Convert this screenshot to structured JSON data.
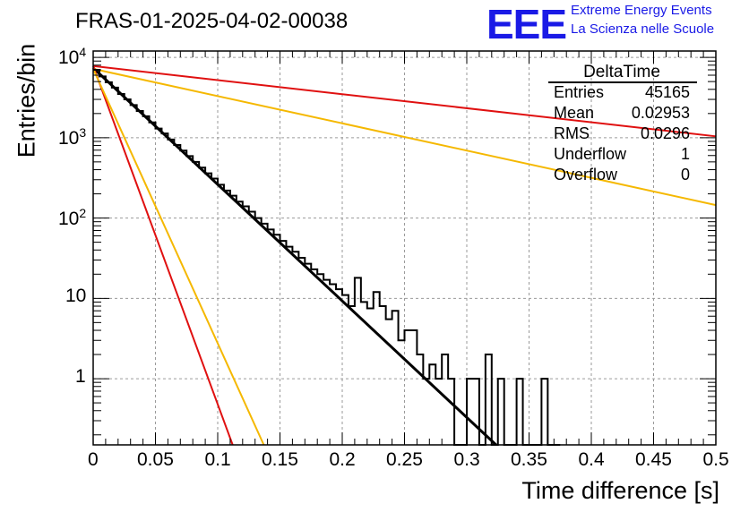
{
  "header": {
    "title": "FRAS-01-2025-04-02-00038",
    "logo_text": "EEE",
    "logo_line1": "Extreme Energy Events",
    "logo_line2": "La Scienza nelle Scuole"
  },
  "stats": {
    "title": "DeltaTime",
    "rows": [
      {
        "label": "Entries",
        "value": "45165"
      },
      {
        "label": "Mean",
        "value": "0.02953"
      },
      {
        "label": "RMS",
        "value": "0.0296"
      },
      {
        "label": "Underflow",
        "value": "1"
      },
      {
        "label": "Overflow",
        "value": "0"
      }
    ]
  },
  "colors": {
    "fit": "#000000",
    "red": "#e01010",
    "yellow": "#f5b800",
    "logo": "#1a1ae6",
    "grid": "#9a9a9a"
  },
  "chart_data": {
    "type": "line",
    "title": "FRAS-01-2025-04-02-00038",
    "xlabel": "Time difference [s]",
    "ylabel": "Entries/bin",
    "xlim": [
      0,
      0.5
    ],
    "ylim": [
      0.15,
      12000
    ],
    "yscale": "log",
    "grid": true,
    "x_ticks": [
      {
        "v": 0,
        "label": "0"
      },
      {
        "v": 0.05,
        "label": "0.05"
      },
      {
        "v": 0.1,
        "label": "0.1"
      },
      {
        "v": 0.15,
        "label": "0.15"
      },
      {
        "v": 0.2,
        "label": "0.2"
      },
      {
        "v": 0.25,
        "label": "0.25"
      },
      {
        "v": 0.3,
        "label": "0.3"
      },
      {
        "v": 0.35,
        "label": "0.35"
      },
      {
        "v": 0.4,
        "label": "0.4"
      },
      {
        "v": 0.45,
        "label": "0.45"
      },
      {
        "v": 0.5,
        "label": "0.5"
      }
    ],
    "y_ticks": [
      {
        "v": 1,
        "label": "1"
      },
      {
        "v": 10,
        "label": "10"
      },
      {
        "v": 100,
        "label": "10",
        "exp": "2"
      },
      {
        "v": 1000,
        "label": "10",
        "exp": "3"
      },
      {
        "v": 10000,
        "label": "10",
        "exp": "4"
      }
    ],
    "histogram": {
      "name": "DeltaTime",
      "bin_width": 0.005,
      "x_start": 0,
      "counts": [
        7000,
        5800,
        4900,
        4200,
        3500,
        3000,
        2550,
        2150,
        1850,
        1550,
        1300,
        1130,
        950,
        810,
        690,
        590,
        500,
        425,
        360,
        310,
        260,
        220,
        190,
        160,
        140,
        120,
        100,
        85,
        72,
        62,
        52,
        44,
        38,
        32,
        27,
        23,
        20,
        17,
        15,
        13,
        11,
        8,
        18,
        9,
        7.5,
        12,
        8,
        5.5,
        7,
        3,
        4,
        4,
        2,
        1,
        1.5,
        1,
        2,
        1,
        0.1,
        0.1,
        1,
        1,
        0.1,
        2,
        0.1,
        1,
        0.1,
        0.1,
        1,
        0.1,
        0.1,
        0.1,
        1,
        0.1,
        0.1
      ]
    },
    "series": [
      {
        "name": "fit",
        "color": "#000000",
        "x0": 0,
        "y0": 7400,
        "x1": 0.3235,
        "y1": 0.15
      },
      {
        "name": "red-slow",
        "color": "#e01010",
        "x0": 0,
        "y0": 7800,
        "x1": 0.5,
        "y1": 1040
      },
      {
        "name": "yellow-slow",
        "color": "#f5b800",
        "x0": 0,
        "y0": 7200,
        "x1": 0.5,
        "y1": 145
      },
      {
        "name": "red-fast",
        "color": "#e01010",
        "x0": 0,
        "y0": 7800,
        "x1": 0.112,
        "y1": 0.15
      },
      {
        "name": "yellow-fast",
        "color": "#f5b800",
        "x0": 0,
        "y0": 7200,
        "x1": 0.137,
        "y1": 0.15
      }
    ]
  }
}
